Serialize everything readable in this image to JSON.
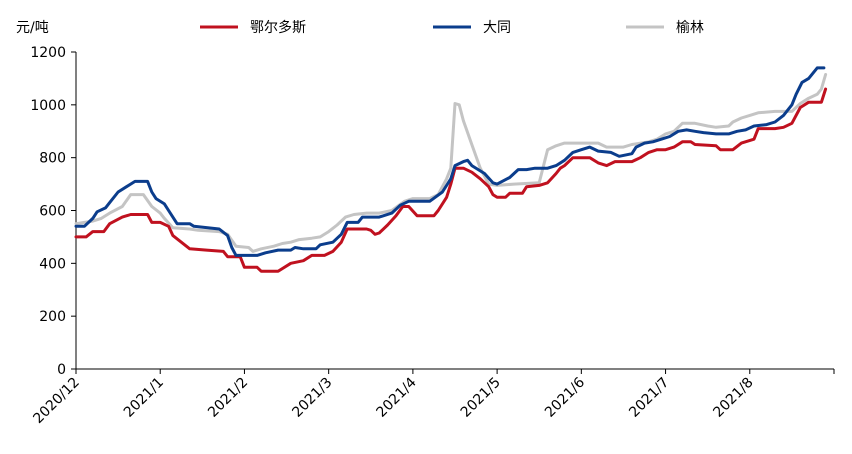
{
  "chart_data": {
    "type": "line",
    "title": "",
    "ylabel": "元/吨",
    "xlabel": "",
    "ylim": [
      0,
      1200
    ],
    "yticks": [
      0,
      200,
      400,
      600,
      800,
      1000,
      1200
    ],
    "x_range": [
      0,
      9
    ],
    "x_tick_positions": [
      0,
      1,
      2,
      3,
      4,
      5,
      6,
      7,
      8
    ],
    "x_tick_labels": [
      "2020/12",
      "2021/1",
      "2021/2",
      "2021/3",
      "2021/4",
      "2021/5",
      "2021/6",
      "2021/7",
      "2021/8"
    ],
    "grid": false,
    "legend_position": "top",
    "series": [
      {
        "name": "鄂尔多斯",
        "color": "#c0111f",
        "points": [
          [
            0.0,
            500
          ],
          [
            0.12,
            500
          ],
          [
            0.2,
            520
          ],
          [
            0.33,
            520
          ],
          [
            0.4,
            550
          ],
          [
            0.55,
            575
          ],
          [
            0.65,
            585
          ],
          [
            0.85,
            585
          ],
          [
            0.9,
            555
          ],
          [
            1.0,
            555
          ],
          [
            1.1,
            540
          ],
          [
            1.15,
            505
          ],
          [
            1.25,
            480
          ],
          [
            1.35,
            455
          ],
          [
            1.55,
            450
          ],
          [
            1.75,
            445
          ],
          [
            1.8,
            425
          ],
          [
            1.95,
            425
          ],
          [
            2.0,
            385
          ],
          [
            2.15,
            385
          ],
          [
            2.2,
            370
          ],
          [
            2.4,
            370
          ],
          [
            2.45,
            380
          ],
          [
            2.55,
            400
          ],
          [
            2.7,
            410
          ],
          [
            2.8,
            430
          ],
          [
            2.95,
            430
          ],
          [
            3.05,
            445
          ],
          [
            3.15,
            480
          ],
          [
            3.22,
            530
          ],
          [
            3.45,
            530
          ],
          [
            3.5,
            525
          ],
          [
            3.55,
            510
          ],
          [
            3.6,
            515
          ],
          [
            3.7,
            545
          ],
          [
            3.8,
            580
          ],
          [
            3.88,
            615
          ],
          [
            3.95,
            615
          ],
          [
            4.05,
            580
          ],
          [
            4.25,
            580
          ],
          [
            4.3,
            600
          ],
          [
            4.4,
            650
          ],
          [
            4.45,
            700
          ],
          [
            4.5,
            760
          ],
          [
            4.6,
            760
          ],
          [
            4.7,
            745
          ],
          [
            4.8,
            720
          ],
          [
            4.9,
            690
          ],
          [
            4.95,
            660
          ],
          [
            5.0,
            650
          ],
          [
            5.1,
            650
          ],
          [
            5.15,
            665
          ],
          [
            5.3,
            665
          ],
          [
            5.35,
            690
          ],
          [
            5.5,
            695
          ],
          [
            5.6,
            705
          ],
          [
            5.7,
            740
          ],
          [
            5.75,
            760
          ],
          [
            5.8,
            770
          ],
          [
            5.9,
            800
          ],
          [
            6.1,
            800
          ],
          [
            6.2,
            780
          ],
          [
            6.3,
            770
          ],
          [
            6.4,
            785
          ],
          [
            6.6,
            785
          ],
          [
            6.7,
            800
          ],
          [
            6.8,
            820
          ],
          [
            6.9,
            830
          ],
          [
            7.0,
            830
          ],
          [
            7.1,
            840
          ],
          [
            7.2,
            860
          ],
          [
            7.3,
            860
          ],
          [
            7.35,
            850
          ],
          [
            7.6,
            845
          ],
          [
            7.65,
            830
          ],
          [
            7.8,
            830
          ],
          [
            7.9,
            855
          ],
          [
            8.05,
            870
          ],
          [
            8.1,
            910
          ],
          [
            8.3,
            910
          ],
          [
            8.4,
            915
          ],
          [
            8.5,
            930
          ],
          [
            8.6,
            990
          ],
          [
            8.7,
            1010
          ],
          [
            8.85,
            1010
          ],
          [
            8.9,
            1060
          ]
        ]
      },
      {
        "name": "大同",
        "color": "#0b3d8c",
        "points": [
          [
            0.0,
            540
          ],
          [
            0.1,
            540
          ],
          [
            0.2,
            570
          ],
          [
            0.25,
            595
          ],
          [
            0.35,
            610
          ],
          [
            0.4,
            630
          ],
          [
            0.5,
            670
          ],
          [
            0.6,
            690
          ],
          [
            0.7,
            710
          ],
          [
            0.85,
            710
          ],
          [
            0.9,
            670
          ],
          [
            0.95,
            645
          ],
          [
            1.05,
            625
          ],
          [
            1.1,
            600
          ],
          [
            1.2,
            550
          ],
          [
            1.35,
            550
          ],
          [
            1.4,
            540
          ],
          [
            1.7,
            530
          ],
          [
            1.8,
            505
          ],
          [
            1.85,
            460
          ],
          [
            1.9,
            430
          ],
          [
            2.15,
            430
          ],
          [
            2.25,
            440
          ],
          [
            2.4,
            450
          ],
          [
            2.55,
            450
          ],
          [
            2.6,
            460
          ],
          [
            2.7,
            455
          ],
          [
            2.85,
            455
          ],
          [
            2.9,
            470
          ],
          [
            3.05,
            480
          ],
          [
            3.15,
            510
          ],
          [
            3.22,
            555
          ],
          [
            3.35,
            555
          ],
          [
            3.4,
            575
          ],
          [
            3.6,
            575
          ],
          [
            3.75,
            590
          ],
          [
            3.85,
            620
          ],
          [
            3.95,
            635
          ],
          [
            4.2,
            635
          ],
          [
            4.35,
            670
          ],
          [
            4.45,
            720
          ],
          [
            4.5,
            770
          ],
          [
            4.6,
            785
          ],
          [
            4.65,
            790
          ],
          [
            4.7,
            770
          ],
          [
            4.85,
            740
          ],
          [
            4.95,
            705
          ],
          [
            5.0,
            700
          ],
          [
            5.15,
            725
          ],
          [
            5.25,
            755
          ],
          [
            5.35,
            755
          ],
          [
            5.45,
            760
          ],
          [
            5.6,
            760
          ],
          [
            5.7,
            770
          ],
          [
            5.8,
            790
          ],
          [
            5.9,
            820
          ],
          [
            6.0,
            830
          ],
          [
            6.1,
            840
          ],
          [
            6.2,
            825
          ],
          [
            6.35,
            820
          ],
          [
            6.45,
            805
          ],
          [
            6.6,
            815
          ],
          [
            6.65,
            840
          ],
          [
            6.75,
            855
          ],
          [
            6.85,
            860
          ],
          [
            6.95,
            870
          ],
          [
            7.05,
            880
          ],
          [
            7.15,
            900
          ],
          [
            7.25,
            905
          ],
          [
            7.35,
            900
          ],
          [
            7.45,
            895
          ],
          [
            7.6,
            890
          ],
          [
            7.75,
            890
          ],
          [
            7.85,
            900
          ],
          [
            7.95,
            905
          ],
          [
            8.05,
            920
          ],
          [
            8.2,
            925
          ],
          [
            8.3,
            935
          ],
          [
            8.4,
            960
          ],
          [
            8.5,
            1000
          ],
          [
            8.55,
            1040
          ],
          [
            8.62,
            1085
          ],
          [
            8.7,
            1100
          ],
          [
            8.8,
            1140
          ],
          [
            8.88,
            1140
          ]
        ]
      },
      {
        "name": "榆林",
        "color": "#c4c4c4",
        "points": [
          [
            0.0,
            550
          ],
          [
            0.1,
            555
          ],
          [
            0.2,
            560
          ],
          [
            0.3,
            570
          ],
          [
            0.4,
            590
          ],
          [
            0.55,
            615
          ],
          [
            0.65,
            660
          ],
          [
            0.8,
            660
          ],
          [
            0.9,
            615
          ],
          [
            1.0,
            590
          ],
          [
            1.05,
            570
          ],
          [
            1.15,
            535
          ],
          [
            1.35,
            530
          ],
          [
            1.45,
            525
          ],
          [
            1.7,
            520
          ],
          [
            1.8,
            510
          ],
          [
            1.9,
            465
          ],
          [
            2.05,
            460
          ],
          [
            2.1,
            445
          ],
          [
            2.2,
            455
          ],
          [
            2.35,
            465
          ],
          [
            2.45,
            475
          ],
          [
            2.55,
            480
          ],
          [
            2.65,
            490
          ],
          [
            2.8,
            495
          ],
          [
            2.9,
            500
          ],
          [
            3.0,
            520
          ],
          [
            3.1,
            545
          ],
          [
            3.2,
            575
          ],
          [
            3.3,
            585
          ],
          [
            3.45,
            590
          ],
          [
            3.6,
            590
          ],
          [
            3.75,
            600
          ],
          [
            3.9,
            635
          ],
          [
            4.0,
            645
          ],
          [
            4.2,
            645
          ],
          [
            4.3,
            660
          ],
          [
            4.4,
            720
          ],
          [
            4.45,
            760
          ],
          [
            4.5,
            1005
          ],
          [
            4.55,
            1000
          ],
          [
            4.6,
            940
          ],
          [
            4.7,
            850
          ],
          [
            4.8,
            760
          ],
          [
            4.9,
            700
          ],
          [
            5.0,
            695
          ],
          [
            5.2,
            700
          ],
          [
            5.5,
            705
          ],
          [
            5.6,
            830
          ],
          [
            5.7,
            845
          ],
          [
            5.8,
            855
          ],
          [
            6.2,
            855
          ],
          [
            6.3,
            840
          ],
          [
            6.5,
            840
          ],
          [
            6.6,
            850
          ],
          [
            6.8,
            860
          ],
          [
            6.9,
            870
          ],
          [
            7.0,
            890
          ],
          [
            7.1,
            900
          ],
          [
            7.2,
            930
          ],
          [
            7.35,
            930
          ],
          [
            7.5,
            920
          ],
          [
            7.6,
            915
          ],
          [
            7.75,
            920
          ],
          [
            7.8,
            935
          ],
          [
            7.9,
            950
          ],
          [
            8.0,
            960
          ],
          [
            8.1,
            970
          ],
          [
            8.3,
            975
          ],
          [
            8.5,
            975
          ],
          [
            8.6,
            1005
          ],
          [
            8.7,
            1025
          ],
          [
            8.8,
            1040
          ],
          [
            8.85,
            1060
          ],
          [
            8.9,
            1115
          ]
        ]
      }
    ]
  }
}
